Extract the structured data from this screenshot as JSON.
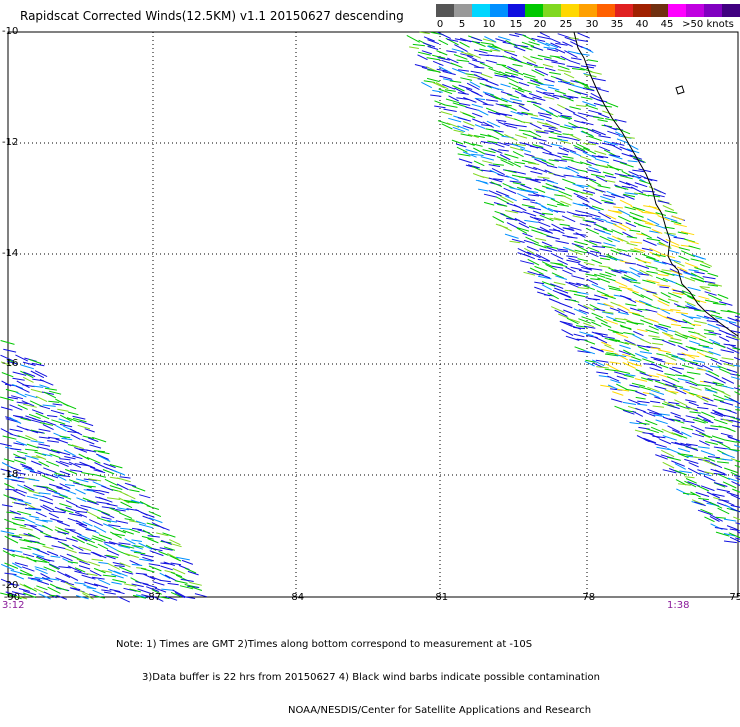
{
  "title": "Rapidscat Corrected Winds(12.5KM) v1.1 20150627 descending",
  "legend": {
    "colors": [
      "#555555",
      "#999999",
      "#00d6ff",
      "#0090ff",
      "#1010e0",
      "#00c800",
      "#80d820",
      "#ffd800",
      "#ffa000",
      "#ff6000",
      "#e02020",
      "#a02000",
      "#703010",
      "#ff00ff",
      "#c000e0",
      "#8000c0",
      "#400080"
    ],
    "labels": [
      "0",
      "5",
      "10",
      "15",
      "20",
      "25",
      "30",
      "35",
      "40",
      "45",
      ">50 knots"
    ]
  },
  "axes": {
    "lat_ticks": [
      "-10",
      "-12",
      "-14",
      "-16",
      "-18",
      "-20"
    ],
    "lon_ticks": [
      "-90",
      "-87",
      "-84",
      "-81",
      "-78",
      "-75"
    ]
  },
  "times": {
    "left": "3:12",
    "right": "1:38"
  },
  "notes": [
    "Note: 1) Times are GMT 2)Times along bottom correspond to measurement at -10S",
    "3)Data buffer is 22 hrs from 20150627 4) Black wind barbs indicate possible contamination",
    "NOAA/NESDIS/Center for Satellite Applications and Research"
  ]
}
